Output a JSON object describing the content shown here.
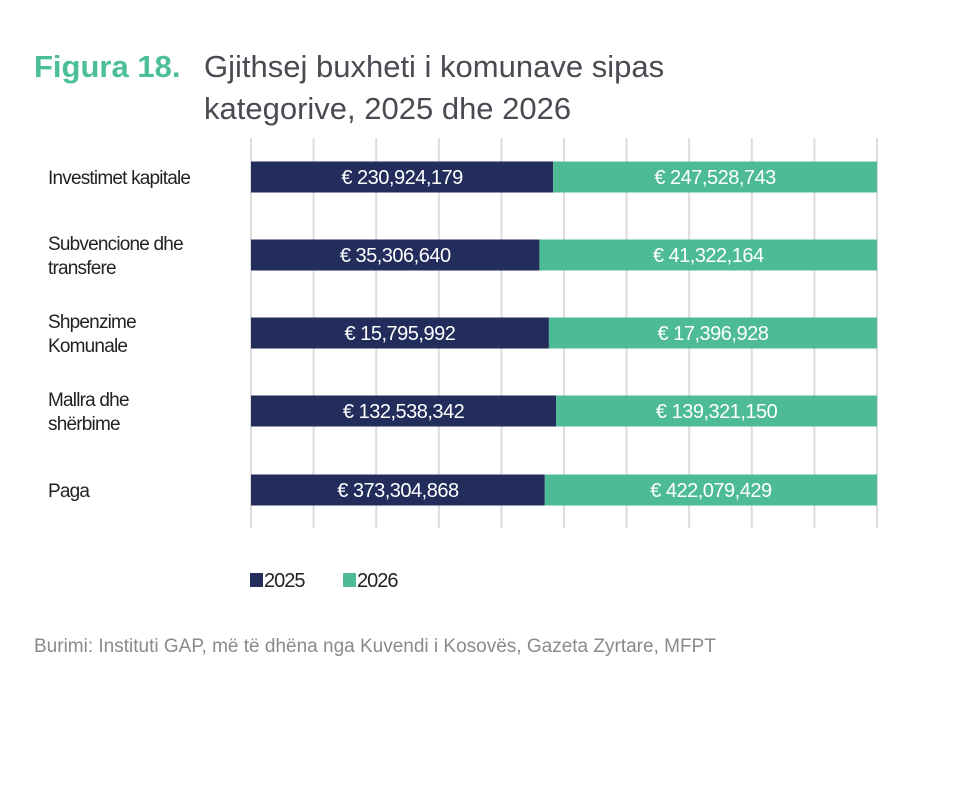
{
  "figure_label": "Figura 18.",
  "title": "Gjithsej buxheti i komunave sipas kategorive, 2025 dhe 2026",
  "source": "Burimi: Instituti GAP, më të dhëna nga Kuvendi i Kosovës, Gazeta Zyrtare, MFPT",
  "chart_data": {
    "type": "bar",
    "orientation": "horizontal",
    "stacked": "percent",
    "title": "Gjithsej buxheti i komunave sipas kategorive, 2025 dhe 2026",
    "categories": [
      [
        "Investimet kapitale"
      ],
      [
        "Subvencione dhe",
        "transfere"
      ],
      [
        "Shpenzime",
        "Komunale"
      ],
      [
        "Mallra dhe",
        "shërbime"
      ],
      [
        "Paga"
      ]
    ],
    "series": [
      {
        "name": "2025",
        "color": "#232d5c",
        "values": [
          230924179,
          35306640,
          15795992,
          132538342,
          373304868
        ],
        "labels": [
          "€ 230,924,179",
          "€ 35,306,640",
          "€ 15,795,992",
          "€ 132,538,342",
          "€ 373,304,868"
        ]
      },
      {
        "name": "2026",
        "color": "#4dbb96",
        "values": [
          247528743,
          41322164,
          17396928,
          139321150,
          422079429
        ],
        "labels": [
          "€ 247,528,743",
          "€ 41,322,164",
          "€ 17,396,928",
          "€ 139,321,150",
          "€ 422,079,429"
        ]
      }
    ],
    "xlim": [
      0,
      100
    ],
    "grid": true,
    "legend": "bottom"
  }
}
